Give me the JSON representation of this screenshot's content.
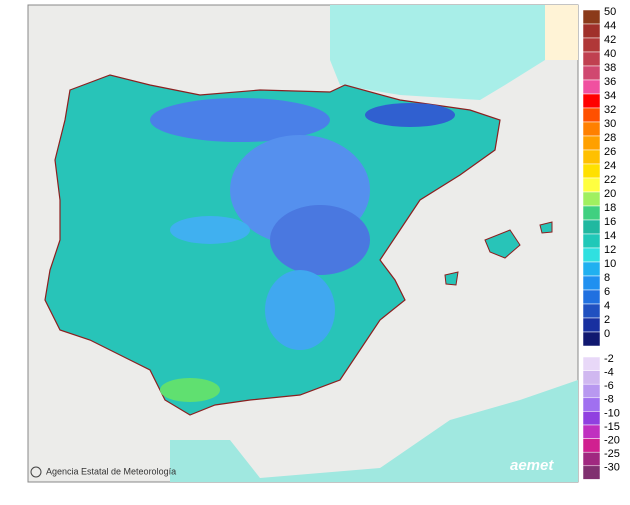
{
  "credit": "Agencia Estatal de Meteorología",
  "logo": "aemet",
  "legend": {
    "positive": [
      {
        "label": "50",
        "color": "#8b3a1a"
      },
      {
        "label": "44",
        "color": "#a0302a"
      },
      {
        "label": "42",
        "color": "#b03838"
      },
      {
        "label": "40",
        "color": "#c04050"
      },
      {
        "label": "38",
        "color": "#d04870"
      },
      {
        "label": "36",
        "color": "#f050a0"
      },
      {
        "label": "34",
        "color": "#ff0000"
      },
      {
        "label": "32",
        "color": "#ff5000"
      },
      {
        "label": "30",
        "color": "#ff8000"
      },
      {
        "label": "28",
        "color": "#ffa000"
      },
      {
        "label": "26",
        "color": "#ffc000"
      },
      {
        "label": "24",
        "color": "#ffe000"
      },
      {
        "label": "22",
        "color": "#ffff40"
      },
      {
        "label": "20",
        "color": "#a0f060"
      },
      {
        "label": "18",
        "color": "#40d080"
      },
      {
        "label": "16",
        "color": "#20b8a0"
      },
      {
        "label": "14",
        "color": "#20c8b8"
      },
      {
        "label": "12",
        "color": "#30e0e0"
      },
      {
        "label": "10",
        "color": "#20b0f0"
      },
      {
        "label": "8",
        "color": "#2090f0"
      },
      {
        "label": "6",
        "color": "#2070e0"
      },
      {
        "label": "4",
        "color": "#2050c0"
      },
      {
        "label": "2",
        "color": "#1830a0"
      },
      {
        "label": "0",
        "color": "#101870"
      }
    ],
    "negative": [
      {
        "label": "-2",
        "color": "#e8d8f8"
      },
      {
        "label": "-4",
        "color": "#d0b8f0"
      },
      {
        "label": "-6",
        "color": "#b898f0"
      },
      {
        "label": "-8",
        "color": "#a070f0"
      },
      {
        "label": "-10",
        "color": "#9040e0"
      },
      {
        "label": "-15",
        "color": "#c030c0"
      },
      {
        "label": "-20",
        "color": "#d02090"
      },
      {
        "label": "-25",
        "color": "#a02880"
      },
      {
        "label": "-30",
        "color": "#803070"
      }
    ]
  }
}
